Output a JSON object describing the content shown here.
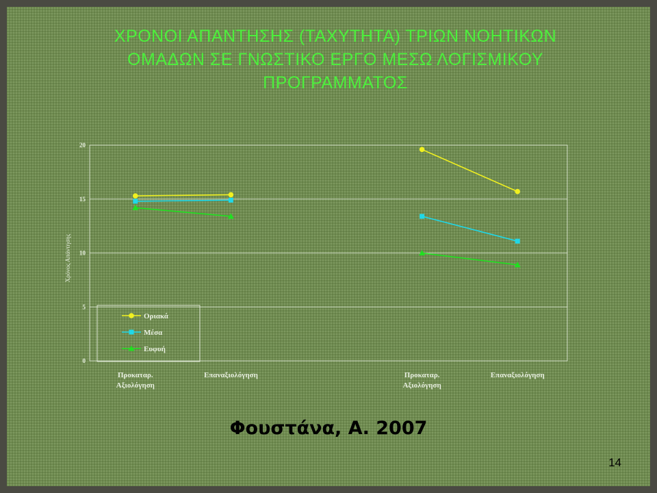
{
  "slide": {
    "title_lines": [
      "ΧΡΟΝΟΙ ΑΠΑΝΤΗΣΗΣ (ΤΑΧΥΤΗΤΑ) ΤΡΙΩΝ ΝΟΗΤΙΚΩΝ",
      "ΟΜΑΔΩΝ ΣΕ ΓΝΩΣΤΙΚΟ ΕΡΓΟ ΜΕΣΩ ΛΟΓΙΣΜΙΚΟΥ",
      "ΠΡΟΓΡΑΜΜΑΤΟΣ"
    ],
    "citation": "Φουστάνα, Α. 2007",
    "page_number": "14"
  },
  "colors": {
    "title": "#4cf03c",
    "background": "#6f8c50",
    "gridline": "#e8efe0"
  },
  "chart_data": {
    "type": "line",
    "ylabel": "Χρόνος Απάντησης",
    "xlabel": "",
    "ylim": [
      0,
      20
    ],
    "yticks": [
      0,
      5,
      10,
      15,
      20
    ],
    "grid": true,
    "legend_position": "bottom-left",
    "categories": [
      [
        "Προκαταρ.",
        "Αξιολόγηση"
      ],
      [
        "Επαναξιολόγηση"
      ],
      [],
      [
        "Προκαταρ.",
        "Αξιολόγηση"
      ],
      [
        "Επαναξιολόγηση"
      ]
    ],
    "segments": [
      [
        0,
        1
      ],
      [
        3,
        4
      ]
    ],
    "series": [
      {
        "name": "Οριακά",
        "color": "#f0f020",
        "marker": "circle",
        "values": [
          15.3,
          15.4,
          null,
          19.6,
          15.7
        ]
      },
      {
        "name": "Μέσα",
        "color": "#20d8e8",
        "marker": "square",
        "values": [
          14.8,
          14.9,
          null,
          13.4,
          11.1
        ]
      },
      {
        "name": "Ευφυή",
        "color": "#20e020",
        "marker": "triangle",
        "values": [
          14.2,
          13.4,
          null,
          10.0,
          8.9
        ]
      }
    ]
  }
}
